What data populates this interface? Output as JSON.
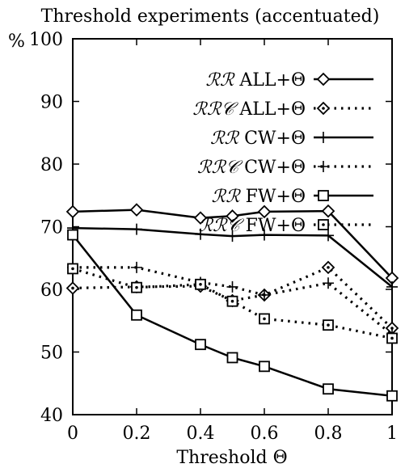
{
  "chart_data": {
    "type": "line",
    "title": "Threshold experiments (accentuated)",
    "xlabel": "Threshold Θ",
    "ylabel": "%",
    "xlim": [
      0,
      1
    ],
    "ylim": [
      40,
      100
    ],
    "xticks": [
      0,
      0.2,
      0.4,
      0.6,
      0.8,
      1
    ],
    "xtick_labels": [
      "0",
      "0.2",
      "0.4",
      "0.6",
      "0.8",
      "1"
    ],
    "yticks": [
      40,
      50,
      60,
      70,
      80,
      90,
      100
    ],
    "ytick_labels": [
      "40",
      "50",
      "60",
      "70",
      "80",
      "90",
      "100"
    ],
    "grid": false,
    "legend_position": "top-right",
    "series": [
      {
        "name": "ℛℛ ALL+Θ",
        "prefix": "ℛℛ",
        "label": "ALL+Θ",
        "marker": "diamond",
        "line": "solid",
        "x": [
          0,
          0.2,
          0.4,
          0.5,
          0.6,
          0.8,
          1
        ],
        "y": [
          72.4,
          72.7,
          71.4,
          71.7,
          72.4,
          72.5,
          61.8
        ]
      },
      {
        "name": "ℛℛ𝒞 ALL+Θ",
        "prefix": "ℛℛ𝒞",
        "label": "ALL+Θ",
        "marker": "diamond-dot",
        "line": "dotted",
        "x": [
          0,
          0.2,
          0.4,
          0.5,
          0.6,
          0.8,
          1
        ],
        "y": [
          60.2,
          60.4,
          60.5,
          58.2,
          59.1,
          63.5,
          53.8
        ]
      },
      {
        "name": "ℛℛ CW+Θ",
        "prefix": "ℛℛ",
        "label": "CW+Θ",
        "marker": "plus",
        "line": "solid",
        "x": [
          0,
          0.2,
          0.4,
          0.5,
          0.6,
          0.8,
          1
        ],
        "y": [
          69.8,
          69.6,
          68.8,
          68.5,
          68.7,
          68.6,
          60.4
        ]
      },
      {
        "name": "ℛℛ𝒞 CW+Θ",
        "prefix": "ℛℛ𝒞",
        "label": "CW+Θ",
        "marker": "plus",
        "line": "dotted",
        "x": [
          0,
          0.2,
          0.4,
          0.5,
          0.6,
          0.8,
          1
        ],
        "y": [
          63.5,
          63.5,
          61.1,
          60.4,
          59.1,
          61.0,
          52.8
        ]
      },
      {
        "name": "ℛℛ FW+Θ",
        "prefix": "ℛℛ",
        "label": "FW+Θ",
        "marker": "square",
        "line": "solid",
        "x": [
          0,
          0.2,
          0.4,
          0.5,
          0.6,
          0.8,
          1
        ],
        "y": [
          68.7,
          55.9,
          51.2,
          49.1,
          47.7,
          44.1,
          43.0
        ]
      },
      {
        "name": "ℛℛ𝒞 FW+Θ",
        "prefix": "ℛℛ𝒞",
        "label": "FW+Θ",
        "marker": "square-dot",
        "line": "dotted",
        "x": [
          0,
          0.2,
          0.4,
          0.5,
          0.6,
          0.8,
          1
        ],
        "y": [
          63.3,
          60.3,
          60.8,
          58.1,
          55.3,
          54.3,
          52.2
        ]
      }
    ]
  }
}
